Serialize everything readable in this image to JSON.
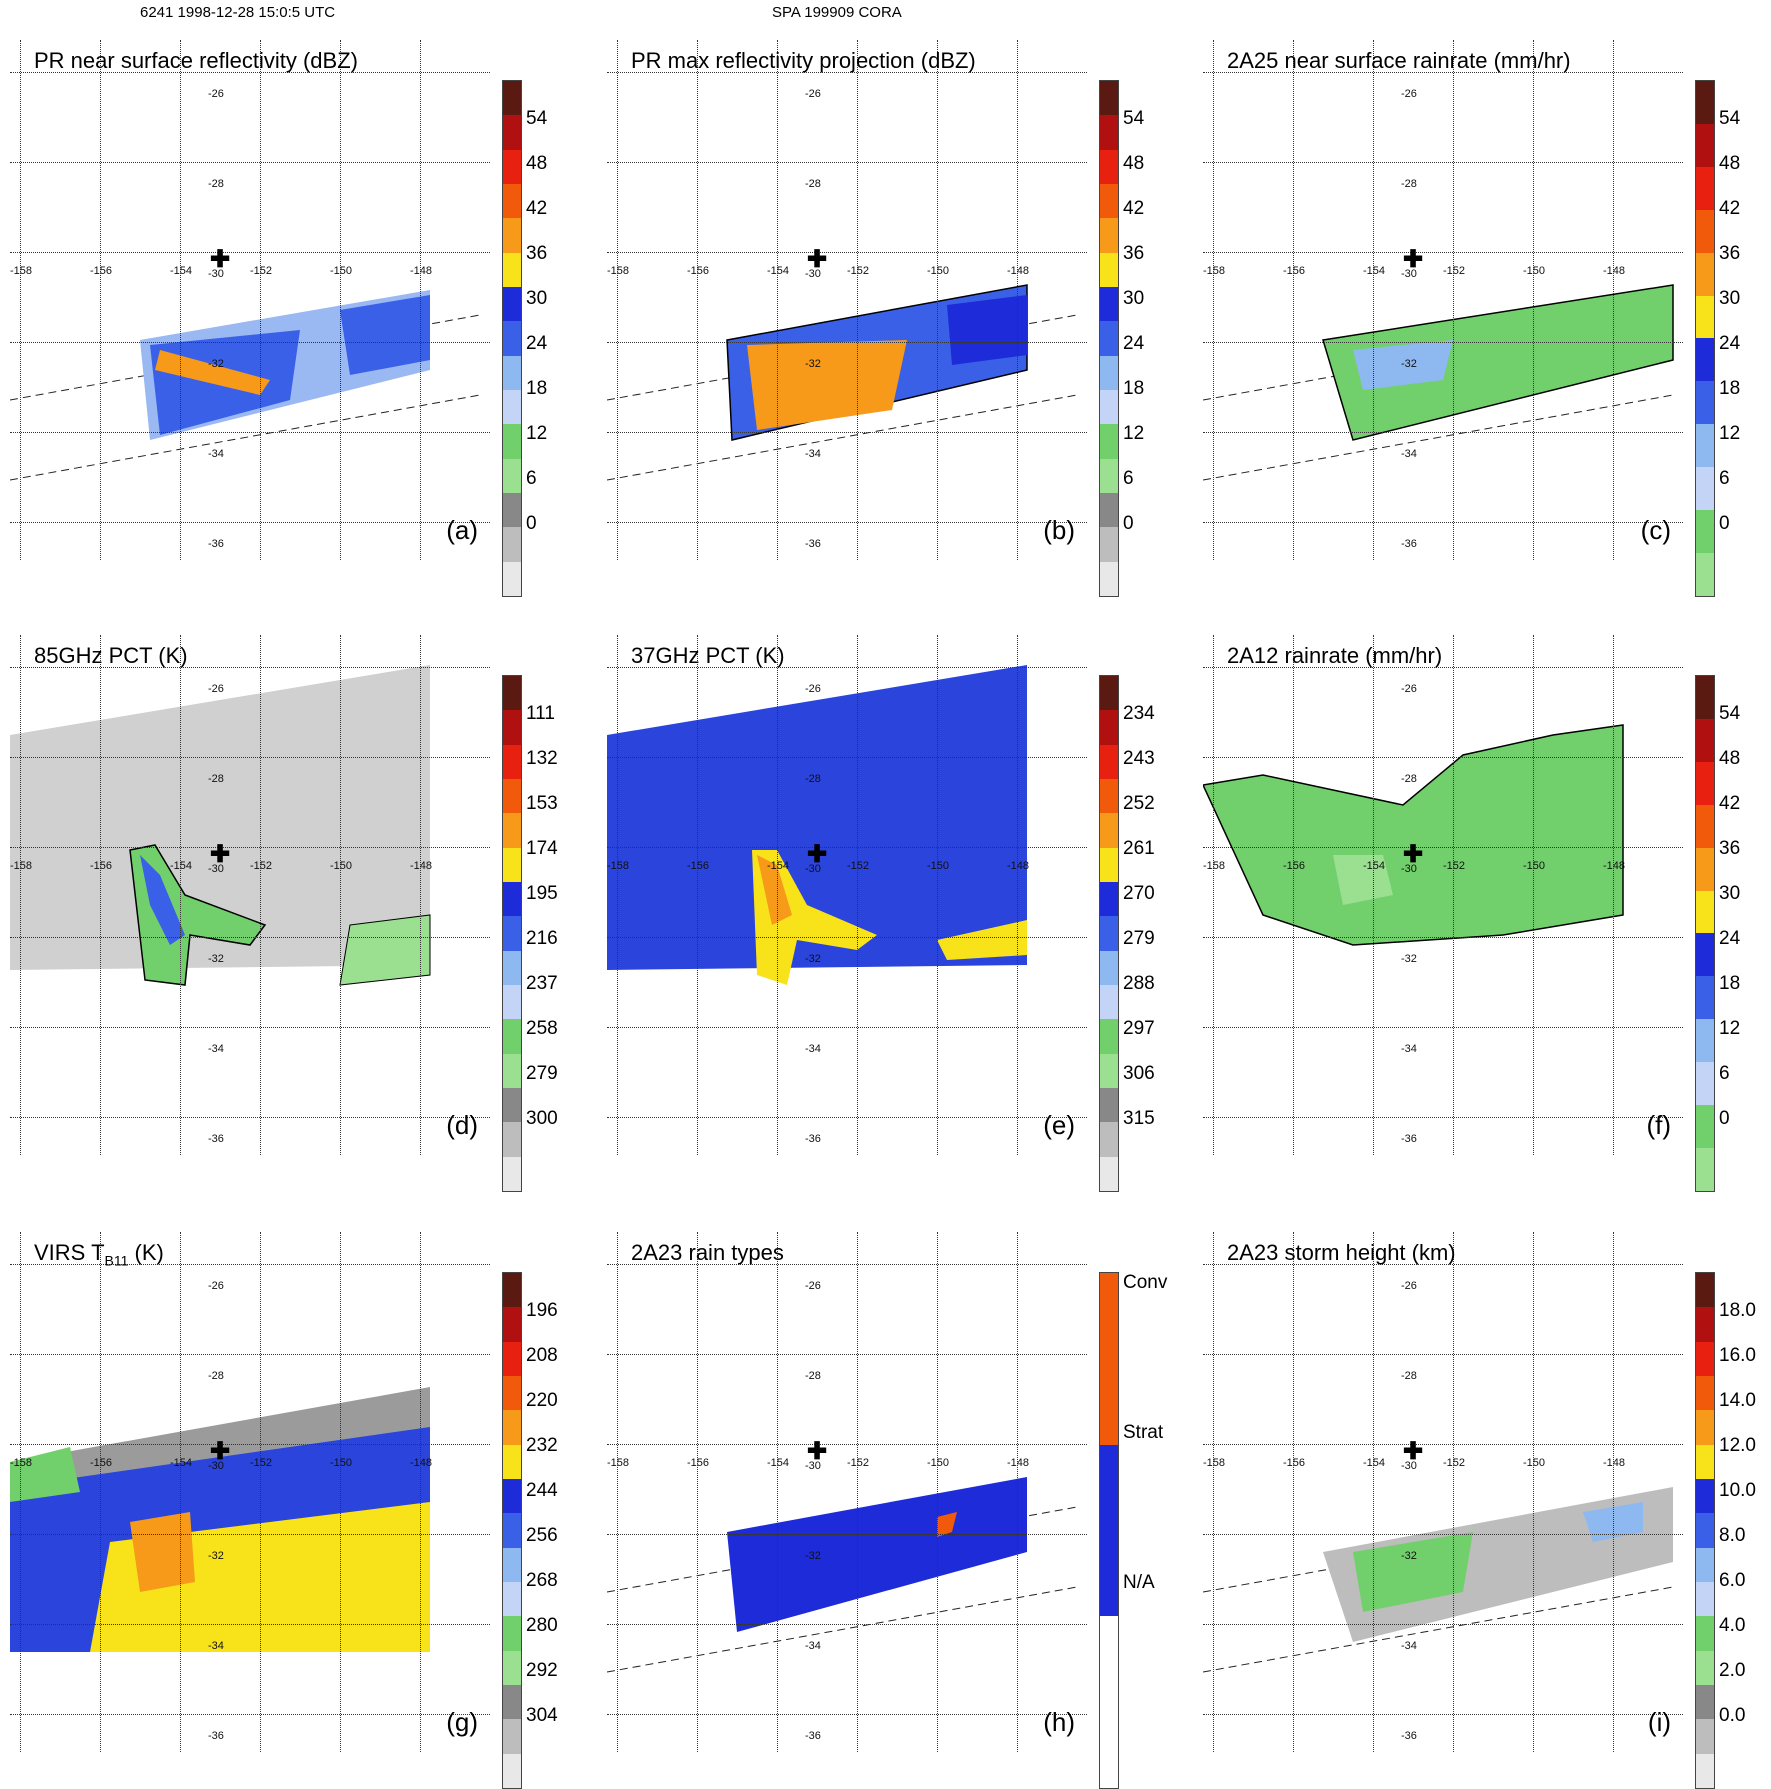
{
  "header": {
    "left": "6241 1998-12-28 15:0:5 UTC",
    "center": "SPA 199909 CORA"
  },
  "grid": {
    "lat_labels": [
      "-26",
      "-28",
      "-30",
      "-32",
      "-34",
      "-36"
    ],
    "lon_labels": [
      "-158",
      "-156",
      "-154",
      "-152",
      "-150",
      "-148"
    ]
  },
  "center_marker": "✚",
  "panels": [
    {
      "id": "a",
      "title": "PR near surface reflectivity (dBZ)",
      "tag": "(a)",
      "colorbar": [
        "54",
        "48",
        "42",
        "36",
        "30",
        "24",
        "18",
        "12",
        "6",
        "0"
      ],
      "colors": [
        "#5a1a12",
        "#b01010",
        "#e82010",
        "#f05a0a",
        "#f79a1a",
        "#f8e21a",
        "#1d2bd8",
        "#3a60e8",
        "#8eb8f0",
        "#c4d4f6",
        "#72d06c",
        "#9ae090",
        "#888888",
        "#bdbdbd",
        "#e8e8e8"
      ]
    },
    {
      "id": "b",
      "title": "PR max reflectivity projection (dBZ)",
      "tag": "(b)",
      "colorbar": [
        "54",
        "48",
        "42",
        "36",
        "30",
        "24",
        "18",
        "12",
        "6",
        "0"
      ],
      "colors": [
        "#5a1a12",
        "#b01010",
        "#e82010",
        "#f05a0a",
        "#f79a1a",
        "#f8e21a",
        "#1d2bd8",
        "#3a60e8",
        "#8eb8f0",
        "#c4d4f6",
        "#72d06c",
        "#9ae090",
        "#888888",
        "#bdbdbd",
        "#e8e8e8"
      ]
    },
    {
      "id": "c",
      "title": "2A25 near surface rainrate (mm/hr)",
      "tag": "(c)",
      "colorbar": [
        "54",
        "48",
        "42",
        "36",
        "30",
        "24",
        "18",
        "12",
        "6",
        "0"
      ],
      "colors": [
        "#5a1a12",
        "#b01010",
        "#e82010",
        "#f05a0a",
        "#f79a1a",
        "#f8e21a",
        "#1d2bd8",
        "#3a60e8",
        "#8eb8f0",
        "#c4d4f6",
        "#72d06c",
        "#9ae090"
      ]
    },
    {
      "id": "d",
      "title": "85GHz PCT (K)",
      "tag": "(d)",
      "colorbar": [
        "111",
        "132",
        "153",
        "174",
        "195",
        "216",
        "237",
        "258",
        "279",
        "300"
      ],
      "colors": [
        "#5a1a12",
        "#b01010",
        "#e82010",
        "#f05a0a",
        "#f79a1a",
        "#f8e21a",
        "#1d2bd8",
        "#3a60e8",
        "#8eb8f0",
        "#c4d4f6",
        "#72d06c",
        "#9ae090",
        "#888888",
        "#bdbdbd",
        "#e8e8e8"
      ]
    },
    {
      "id": "e",
      "title": "37GHz PCT (K)",
      "tag": "(e)",
      "colorbar": [
        "234",
        "243",
        "252",
        "261",
        "270",
        "279",
        "288",
        "297",
        "306",
        "315"
      ],
      "colors": [
        "#5a1a12",
        "#b01010",
        "#e82010",
        "#f05a0a",
        "#f79a1a",
        "#f8e21a",
        "#1d2bd8",
        "#3a60e8",
        "#8eb8f0",
        "#c4d4f6",
        "#72d06c",
        "#9ae090",
        "#888888",
        "#bdbdbd",
        "#e8e8e8"
      ]
    },
    {
      "id": "f",
      "title": "2A12 rainrate (mm/hr)",
      "tag": "(f)",
      "colorbar": [
        "54",
        "48",
        "42",
        "36",
        "30",
        "24",
        "18",
        "12",
        "6",
        "0"
      ],
      "colors": [
        "#5a1a12",
        "#b01010",
        "#e82010",
        "#f05a0a",
        "#f79a1a",
        "#f8e21a",
        "#1d2bd8",
        "#3a60e8",
        "#8eb8f0",
        "#c4d4f6",
        "#72d06c",
        "#9ae090"
      ]
    },
    {
      "id": "g",
      "title_main": "VIRS T",
      "title_sub": "B11",
      "title_tail": " (K)",
      "tag": "(g)",
      "colorbar": [
        "196",
        "208",
        "220",
        "232",
        "244",
        "256",
        "268",
        "280",
        "292",
        "304"
      ],
      "colors": [
        "#5a1a12",
        "#b01010",
        "#e82010",
        "#f05a0a",
        "#f79a1a",
        "#f8e21a",
        "#1d2bd8",
        "#3a60e8",
        "#8eb8f0",
        "#c4d4f6",
        "#72d06c",
        "#9ae090",
        "#888888",
        "#bdbdbd",
        "#e8e8e8"
      ]
    },
    {
      "id": "h",
      "title": "2A23 rain types",
      "tag": "(h)",
      "colorbar": [
        "Conv",
        "Strat",
        "N/A"
      ],
      "colors": [
        "#f05a0a",
        "#1d2bd8",
        "#ffffff"
      ]
    },
    {
      "id": "i",
      "title": "2A23 storm height (km)",
      "tag": "(i)",
      "colorbar": [
        "18.0",
        "16.0",
        "14.0",
        "12.0",
        "10.0",
        "8.0",
        "6.0",
        "4.0",
        "2.0",
        "0.0"
      ],
      "colors": [
        "#5a1a12",
        "#b01010",
        "#e82010",
        "#f05a0a",
        "#f79a1a",
        "#f8e21a",
        "#1d2bd8",
        "#3a60e8",
        "#8eb8f0",
        "#c4d4f6",
        "#72d06c",
        "#9ae090",
        "#888888",
        "#bdbdbd",
        "#e8e8e8"
      ]
    }
  ]
}
